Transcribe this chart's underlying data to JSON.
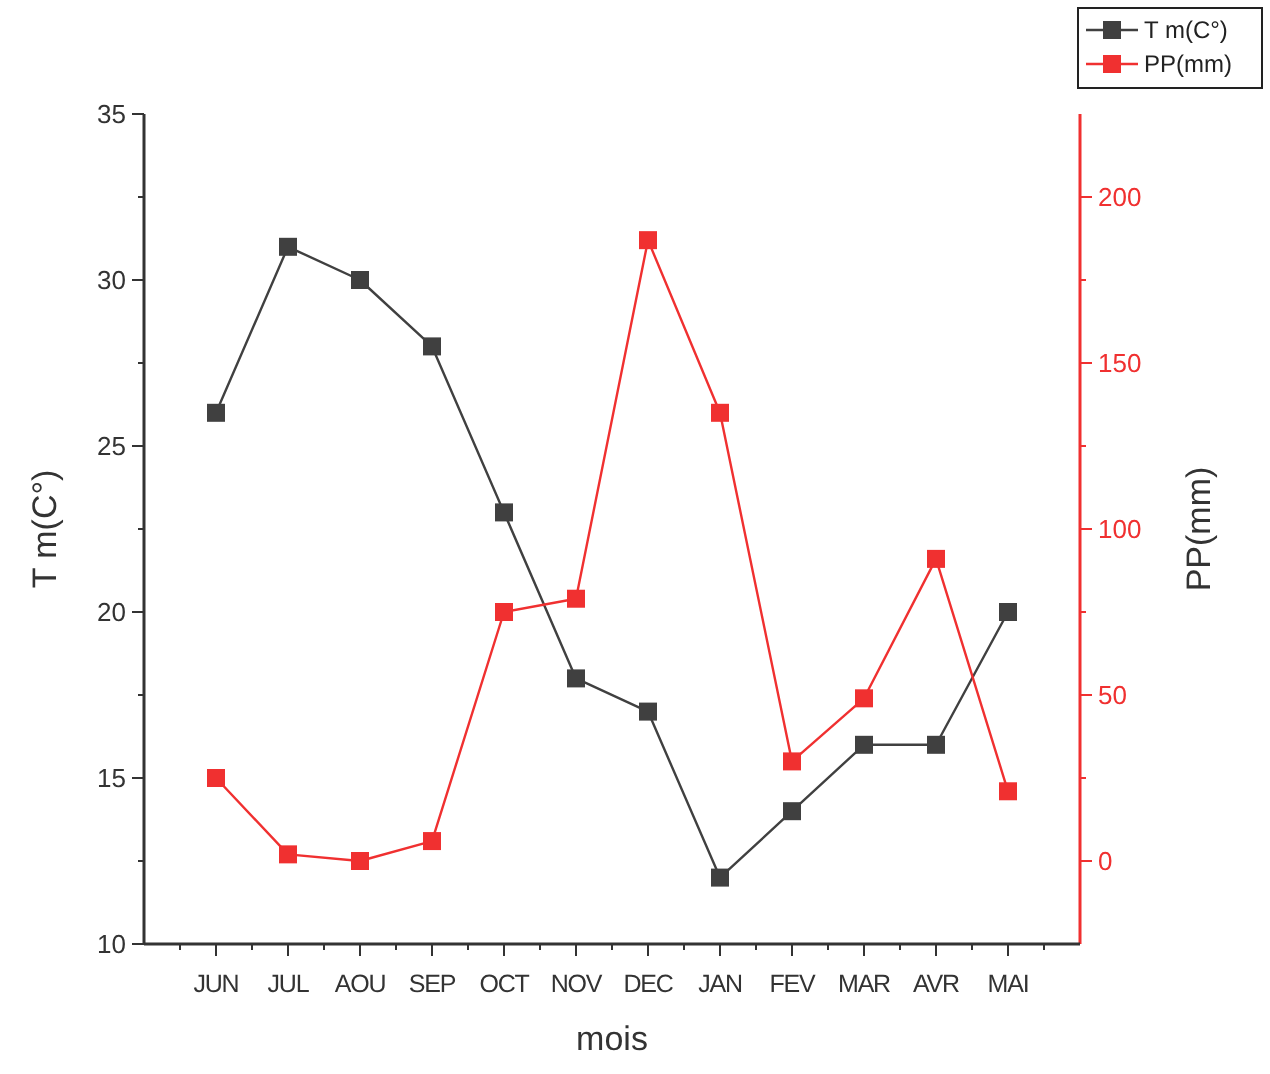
{
  "chart_data": {
    "type": "line",
    "xlabel": "mois",
    "ylabel": "T m(C°)",
    "y2label": "PP(mm)",
    "categories": [
      "JUN",
      "JUL",
      "AOU",
      "SEP",
      "OCT",
      "NOV",
      "DEC",
      "JAN",
      "FEV",
      "MAR",
      "AVR",
      "MAI"
    ],
    "series": [
      {
        "name": "T m(C°)",
        "color": "#404040",
        "values": [
          26,
          31,
          30,
          28,
          23,
          18,
          17,
          12,
          14,
          16,
          16,
          20
        ]
      },
      {
        "name": "PP(mm)",
        "color": "#f03030",
        "axis": "y2",
        "values": [
          25,
          2,
          0,
          6,
          75,
          79,
          187,
          135,
          30,
          49,
          91,
          21
        ]
      }
    ],
    "ylim": [
      10,
      35
    ],
    "yticks": [
      10,
      15,
      20,
      25,
      30,
      35
    ],
    "y2lim": [
      -25,
      225
    ],
    "y2ticks": [
      0,
      50,
      100,
      150,
      200
    ],
    "marker": "square",
    "legend": "top right",
    "grid": false
  }
}
